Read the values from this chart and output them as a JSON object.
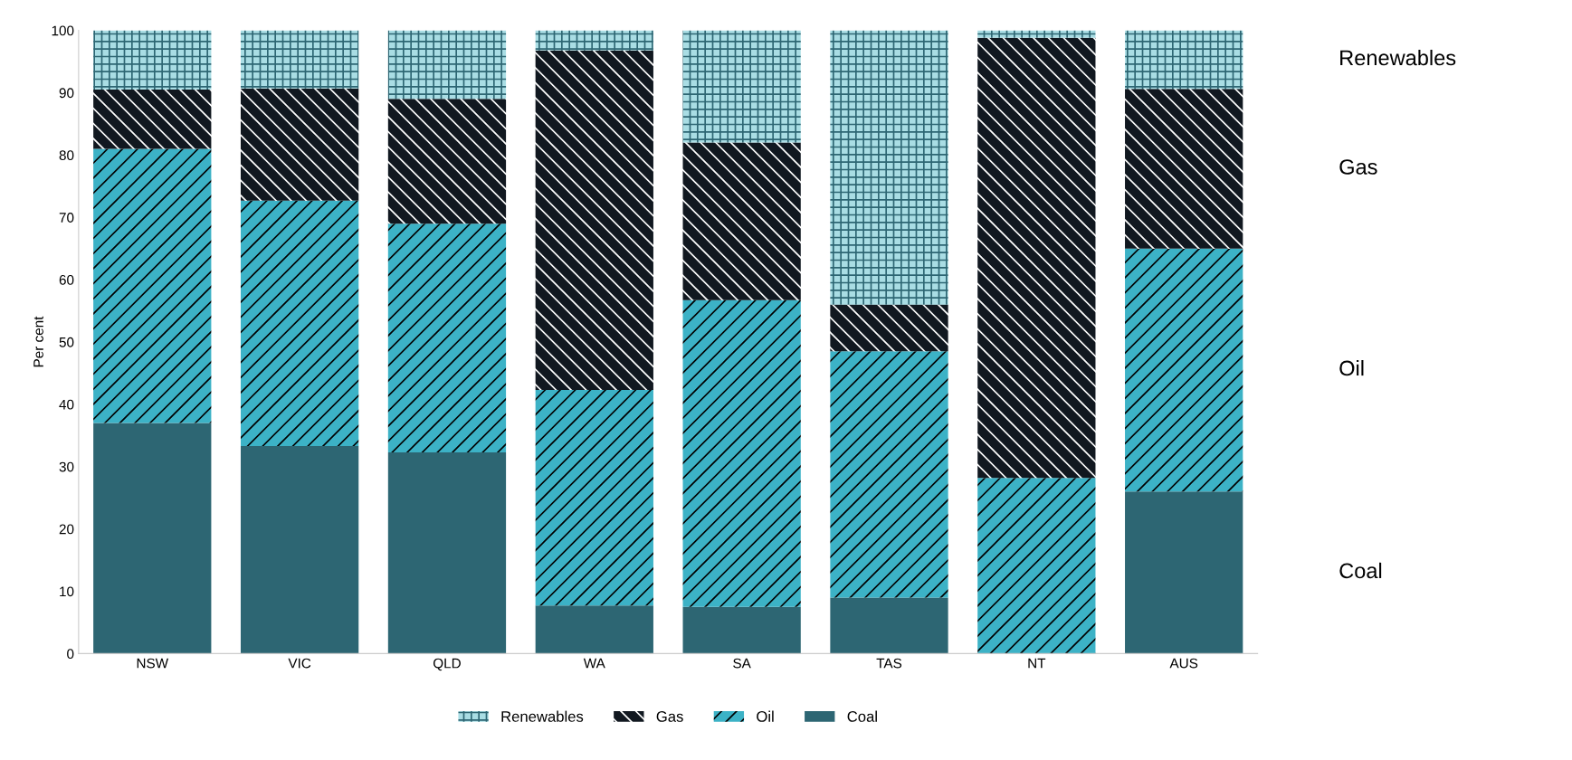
{
  "chart_data": {
    "type": "bar",
    "stacked": true,
    "ylabel": "Per cent",
    "categories": [
      "NSW",
      "VIC",
      "QLD",
      "WA",
      "SA",
      "TAS",
      "NT",
      "AUS"
    ],
    "series": [
      {
        "name": "Coal",
        "color": "#2d6673",
        "values": [
          37,
          33.3,
          32.3,
          7.7,
          7.5,
          9,
          0,
          26
        ]
      },
      {
        "name": "Oil",
        "color": "#3cb2c6",
        "values": [
          44,
          39.4,
          36.7,
          34.6,
          49.2,
          39.5,
          28.2,
          39
        ]
      },
      {
        "name": "Gas",
        "color": "#111820",
        "values": [
          9.5,
          18,
          20,
          54.5,
          25.3,
          7.5,
          70.6,
          25.6
        ]
      },
      {
        "name": "Renewables",
        "color": "#a9dde4",
        "values": [
          9.5,
          9.3,
          11,
          3.2,
          18,
          44,
          1.2,
          9.4
        ]
      }
    ],
    "ylim": [
      0,
      100
    ],
    "yticks": [
      0,
      10,
      20,
      30,
      40,
      50,
      60,
      70,
      80,
      90,
      100
    ],
    "grid": false,
    "legend": "bottom"
  }
}
